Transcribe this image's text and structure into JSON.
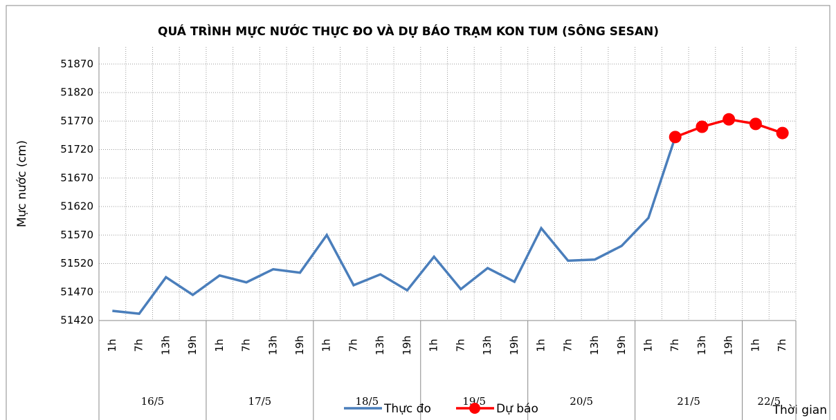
{
  "chart_data": {
    "type": "line",
    "title": "QUÁ TRÌNH MỰC NƯỚC THỰC ĐO VÀ DỰ BÁO TRẠM KON TUM (SÔNG SESAN)",
    "y_label": "Mực nước (cm)",
    "x_label": "Thời gian",
    "categories": [
      "1h",
      "7h",
      "13h",
      "19h",
      "1h",
      "7h",
      "13h",
      "19h",
      "1h",
      "7h",
      "13h",
      "19h",
      "1h",
      "7h",
      "13h",
      "19h",
      "1h",
      "7h",
      "13h",
      "19h",
      "1h",
      "7h",
      "13h",
      "19h",
      "1h",
      "7h"
    ],
    "groups": [
      {
        "label": "16/5",
        "count": 4
      },
      {
        "label": "17/5",
        "count": 4
      },
      {
        "label": "18/5",
        "count": 4
      },
      {
        "label": "19/5",
        "count": 4
      },
      {
        "label": "20/5",
        "count": 4
      },
      {
        "label": "21/5",
        "count": 4
      },
      {
        "label": "22/5",
        "count": 2
      }
    ],
    "series": [
      {
        "name": "Thực đo",
        "color": "#4a7ebb",
        "marker": false,
        "values": [
          51437,
          51432,
          51496,
          51465,
          51499,
          51487,
          51510,
          51504,
          51570,
          51482,
          51501,
          51473,
          51532,
          51475,
          51512,
          51488,
          51582,
          51525,
          51527,
          51551,
          51600,
          51742,
          null,
          null,
          null,
          null
        ]
      },
      {
        "name": "Dự báo",
        "color": "#ff0000",
        "marker": true,
        "values": [
          null,
          null,
          null,
          null,
          null,
          null,
          null,
          null,
          null,
          null,
          null,
          null,
          null,
          null,
          null,
          null,
          null,
          null,
          null,
          null,
          null,
          51742,
          51760,
          51773,
          51765,
          51749
        ]
      }
    ],
    "ylim": [
      51420,
      51900
    ],
    "yticks": [
      51420,
      51470,
      51520,
      51570,
      51620,
      51670,
      51720,
      51770,
      51820,
      51870
    ],
    "grid": true
  }
}
